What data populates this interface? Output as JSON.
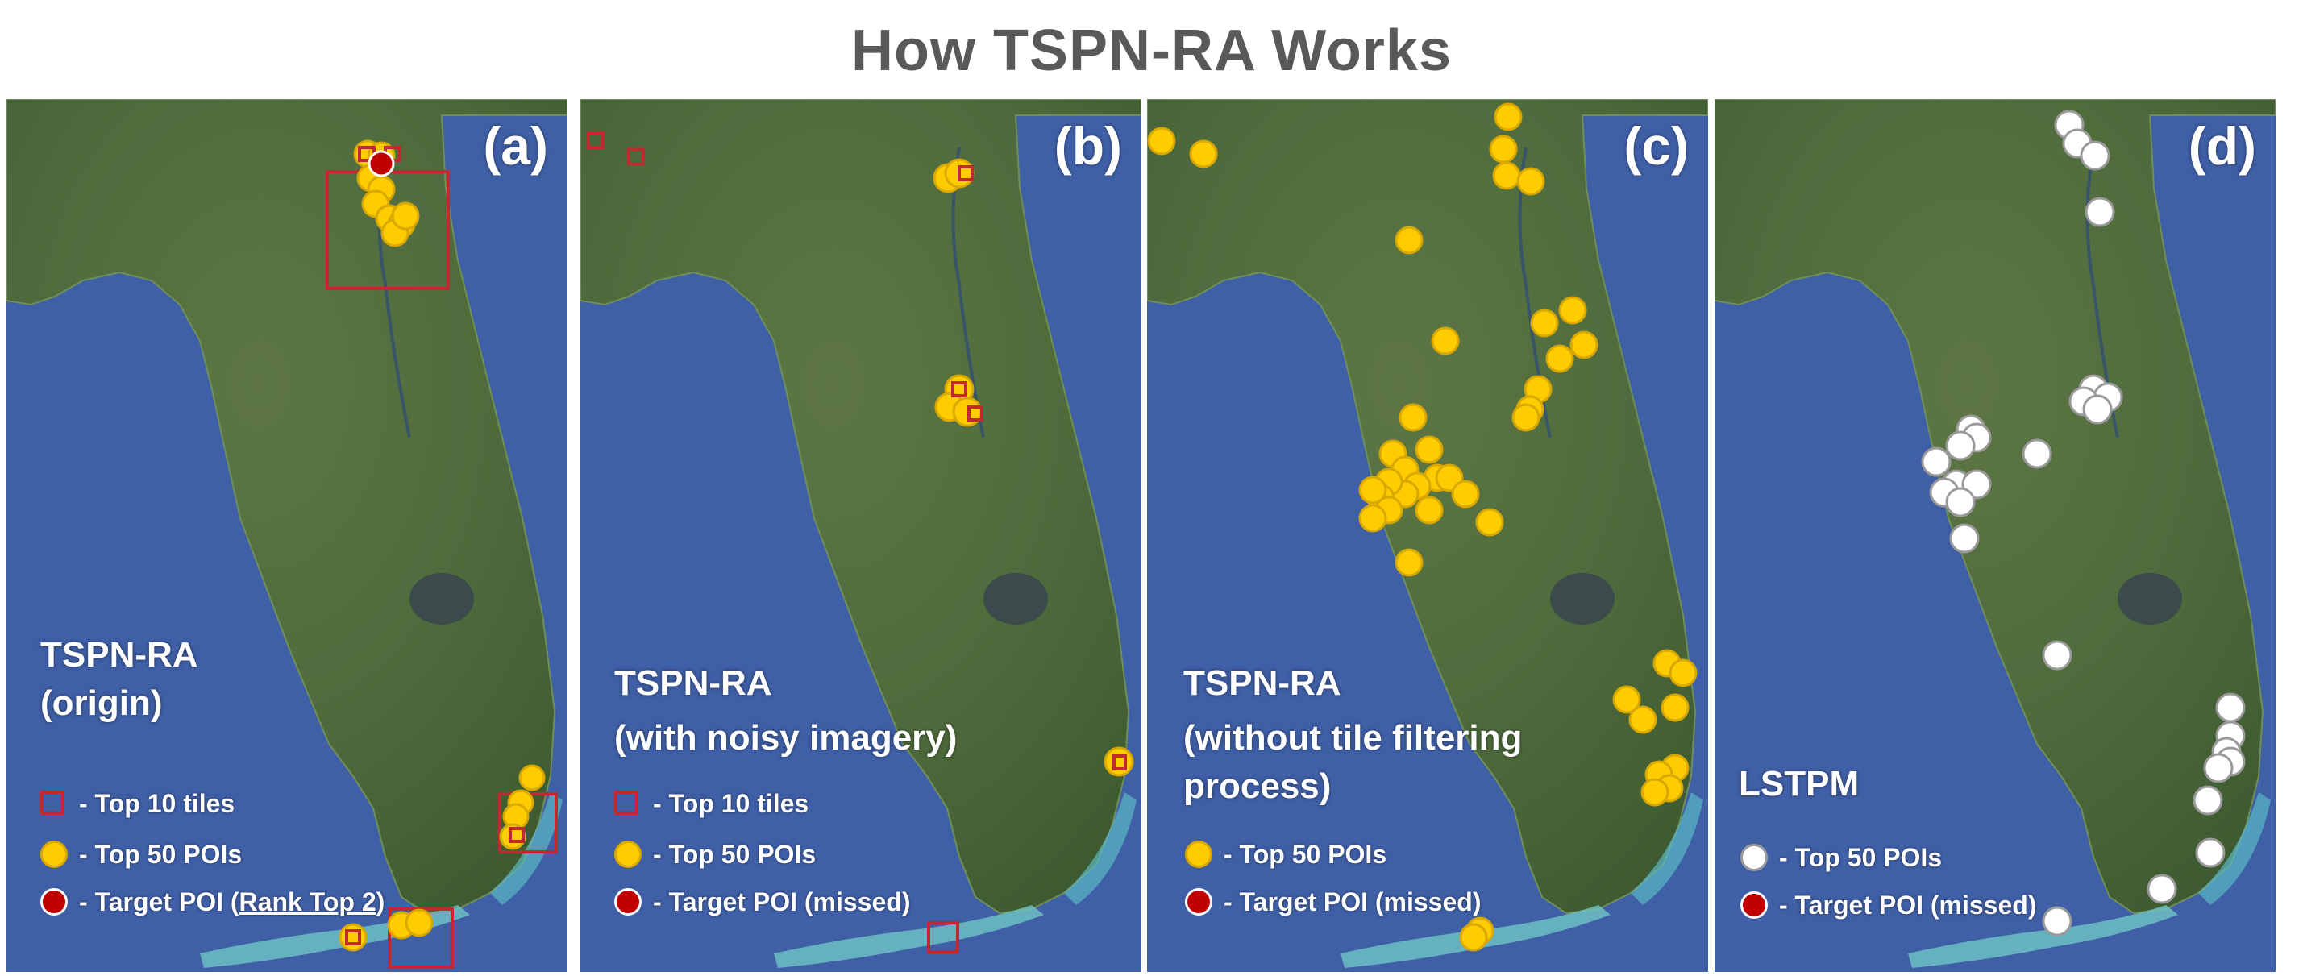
{
  "title": "How TSPN-RA Works",
  "colors": {
    "ocean": "#3f5fa6",
    "land": "#4e6a3c",
    "top_poi_fill": "#ffcc00",
    "top_poi_stroke": "#d8a800",
    "tile_box": "#c0292f",
    "target_poi": "#c00000",
    "lstpm_poi": "#ffffff"
  },
  "panels": [
    {
      "label": "(a)",
      "method_line1": "TSPN-RA",
      "method_line2": "(origin)",
      "method_line3": "",
      "legend": {
        "tiles": "- Top 10 tiles",
        "pois": "- Top 50 POIs",
        "target_prefix": "- Target POI (",
        "target_rank": "Rank Top 2",
        "target_suffix": ")"
      }
    },
    {
      "label": "(b)",
      "method_line1": "TSPN-RA",
      "method_line2": "(with noisy imagery)",
      "method_line3": "",
      "legend": {
        "tiles": "- Top 10 tiles",
        "pois": "- Top 50 POIs",
        "target": "- Target POI (missed)"
      }
    },
    {
      "label": "(c)",
      "method_line1": "TSPN-RA",
      "method_line2": "(without tile filtering",
      "method_line3": "process)",
      "legend": {
        "pois": "- Top 50 POIs",
        "target": "- Target POI (missed)"
      }
    },
    {
      "label": "(d)",
      "method_line1": "LSTPM",
      "method_line2": "",
      "method_line3": "",
      "legend": {
        "pois": "- Top 50 POIs",
        "target": "- Target POI (missed)"
      }
    }
  ]
}
